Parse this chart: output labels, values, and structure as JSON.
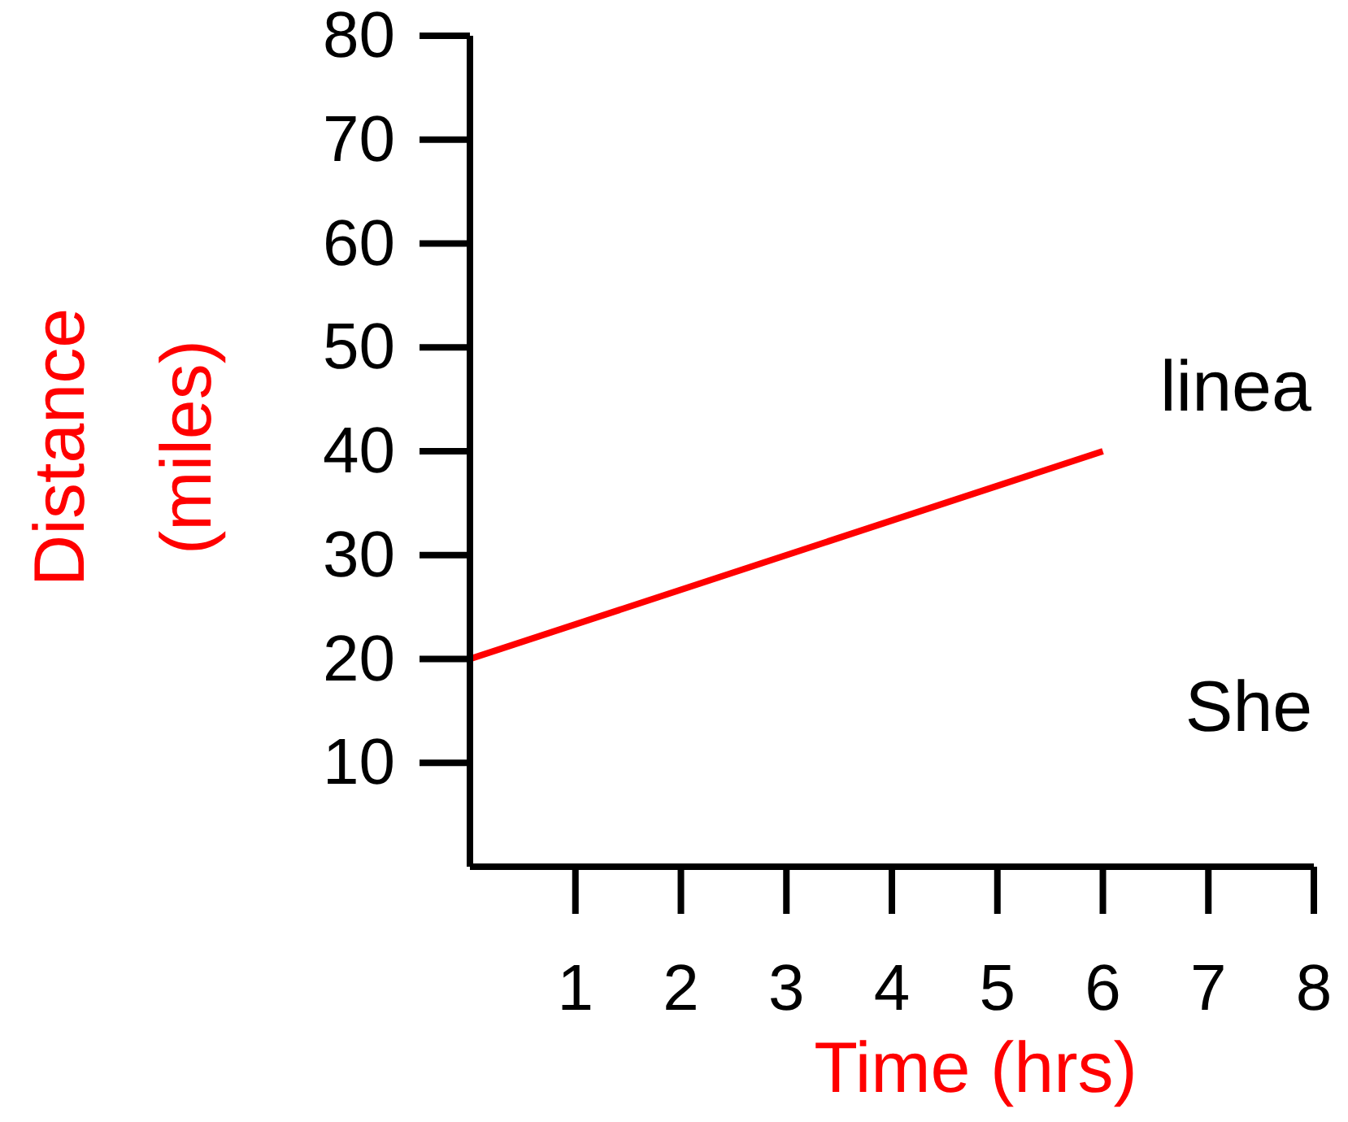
{
  "chart_data": {
    "type": "line",
    "xlabel": "Time (hrs)",
    "ylabel": "Distance (miles)",
    "x": [
      0,
      6
    ],
    "series": [
      {
        "color": "#ff0000",
        "values": [
          20,
          40
        ]
      }
    ],
    "xlim": [
      0,
      8
    ],
    "xticks": [
      1,
      2,
      3,
      4,
      5,
      6,
      7,
      8
    ],
    "ylim": [
      0,
      80
    ],
    "yticks": [
      10,
      20,
      30,
      40,
      50,
      60,
      70,
      80
    ],
    "grid": false,
    "legend": false,
    "marker": "none",
    "line_style": "solid",
    "annotations": [
      "linea",
      "She"
    ]
  }
}
